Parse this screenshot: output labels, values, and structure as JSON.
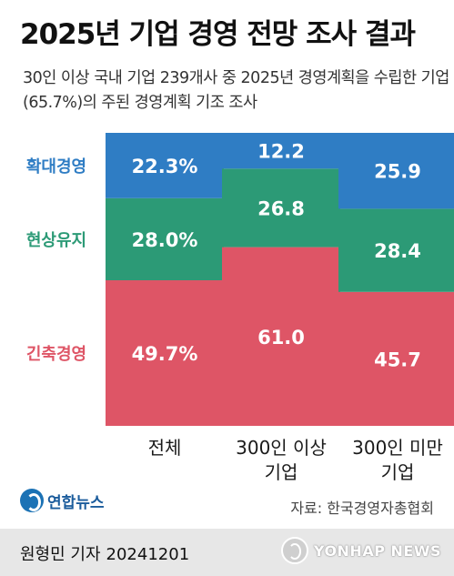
{
  "title": "2025년 기업 경영 전망 조사 결과",
  "subtitle": "30인 이상 국내 기업 239개사 중 2025년 경영계획을 수립한 기업(65.7%)의 주된 경영계획 기조 조사",
  "source": "자료: 한국경영자총협회",
  "brand": {
    "name": "연합뉴스",
    "watermark": "YONHAP NEWS"
  },
  "reporter": {
    "name": "원형민 기자",
    "date": "20241201"
  },
  "colors": {
    "expansion": "#2f7dc4",
    "status_quo": "#2c9a76",
    "contraction": "#de5566"
  },
  "chart_data": {
    "type": "bar",
    "stacked": true,
    "unit": "%",
    "ylim": [
      0,
      100
    ],
    "categories": [
      [
        "전체"
      ],
      [
        "300인 이상",
        "기업"
      ],
      [
        "300인 미만",
        "기업"
      ]
    ],
    "series": [
      {
        "name": "긴축경영",
        "values": [
          49.7,
          61.0,
          45.7
        ],
        "labels": [
          "49.7%",
          "61.0",
          "45.7"
        ],
        "color": "#de5566"
      },
      {
        "name": "현상유지",
        "values": [
          28.0,
          26.8,
          28.4
        ],
        "labels": [
          "28.0%",
          "26.8",
          "28.4"
        ],
        "color": "#2c9a76"
      },
      {
        "name": "확대경영",
        "values": [
          22.3,
          12.2,
          25.9
        ],
        "labels": [
          "22.3%",
          "12.2",
          "25.9"
        ],
        "color": "#2f7dc4"
      }
    ],
    "legend_position": "left"
  }
}
